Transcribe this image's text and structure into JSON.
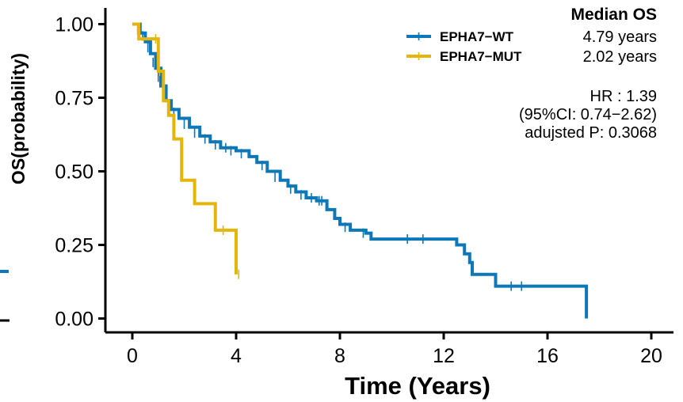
{
  "chart_data": {
    "type": "line",
    "subtype": "kaplan-meier",
    "xlabel": "Time (Years)",
    "ylabel": "OS(probability)",
    "xlim": [
      -1,
      21
    ],
    "ylim": [
      -0.04,
      1.04
    ],
    "x_ticks": [
      "0",
      "4",
      "8",
      "12",
      "16",
      "20"
    ],
    "y_ticks": [
      "0.00",
      "0.25",
      "0.50",
      "0.75",
      "1.00"
    ],
    "legend_position": "top-right",
    "median_header": "Median OS",
    "stats": {
      "hr": "HR : 1.39",
      "ci": "(95%CI: 0.74−2.62)",
      "p": "adujsted P: 0.3068"
    },
    "series": [
      {
        "name": "EPHA7−WT",
        "median": "4.79 years",
        "color": "#0d77b8",
        "steps": [
          [
            0,
            1.0
          ],
          [
            0.3,
            0.97
          ],
          [
            0.5,
            0.94
          ],
          [
            0.7,
            0.9
          ],
          [
            0.9,
            0.85
          ],
          [
            1.1,
            0.79
          ],
          [
            1.3,
            0.74
          ],
          [
            1.5,
            0.71
          ],
          [
            1.8,
            0.68
          ],
          [
            2.2,
            0.65
          ],
          [
            2.6,
            0.62
          ],
          [
            3.0,
            0.6
          ],
          [
            3.4,
            0.58
          ],
          [
            4.0,
            0.57
          ],
          [
            4.5,
            0.55
          ],
          [
            4.8,
            0.53
          ],
          [
            5.2,
            0.5
          ],
          [
            5.7,
            0.47
          ],
          [
            6.0,
            0.45
          ],
          [
            6.3,
            0.43
          ],
          [
            6.7,
            0.41
          ],
          [
            7.1,
            0.4
          ],
          [
            7.4,
            0.4
          ],
          [
            7.5,
            0.37
          ],
          [
            7.8,
            0.34
          ],
          [
            8.0,
            0.32
          ],
          [
            8.4,
            0.3
          ],
          [
            9.0,
            0.29
          ],
          [
            9.2,
            0.27
          ],
          [
            12.5,
            0.25
          ],
          [
            12.8,
            0.22
          ],
          [
            13.0,
            0.19
          ],
          [
            13.1,
            0.15
          ],
          [
            14.0,
            0.11
          ],
          [
            17.5,
            0.11
          ],
          [
            17.5,
            0.0
          ]
        ],
        "censors": [
          [
            0.4,
            0.96
          ],
          [
            0.6,
            0.92
          ],
          [
            0.8,
            0.87
          ],
          [
            1.0,
            0.82
          ],
          [
            1.2,
            0.77
          ],
          [
            1.6,
            0.7
          ],
          [
            2.0,
            0.66
          ],
          [
            2.4,
            0.63
          ],
          [
            2.8,
            0.61
          ],
          [
            3.2,
            0.59
          ],
          [
            3.6,
            0.58
          ],
          [
            3.8,
            0.57
          ],
          [
            4.2,
            0.56
          ],
          [
            5.0,
            0.52
          ],
          [
            5.5,
            0.48
          ],
          [
            6.1,
            0.44
          ],
          [
            6.5,
            0.42
          ],
          [
            6.9,
            0.41
          ],
          [
            7.2,
            0.4
          ],
          [
            7.3,
            0.4
          ],
          [
            8.2,
            0.31
          ],
          [
            8.9,
            0.29
          ],
          [
            10.6,
            0.27
          ],
          [
            11.2,
            0.27
          ],
          [
            14.6,
            0.11
          ],
          [
            15.0,
            0.11
          ]
        ]
      },
      {
        "name": "EPHA7−MUT",
        "median": "2.02 years",
        "color": "#e6b50a",
        "steps": [
          [
            0,
            1.0
          ],
          [
            0.25,
            0.95
          ],
          [
            1.0,
            0.84
          ],
          [
            1.2,
            0.74
          ],
          [
            1.4,
            0.69
          ],
          [
            1.6,
            0.61
          ],
          [
            1.9,
            0.47
          ],
          [
            2.4,
            0.39
          ],
          [
            3.2,
            0.3
          ],
          [
            4.0,
            0.15
          ]
        ],
        "censors": [
          [
            0.2,
            0.98
          ],
          [
            0.9,
            0.95
          ],
          [
            1.05,
            0.84
          ],
          [
            3.5,
            0.3
          ],
          [
            4.1,
            0.15
          ]
        ]
      }
    ]
  }
}
